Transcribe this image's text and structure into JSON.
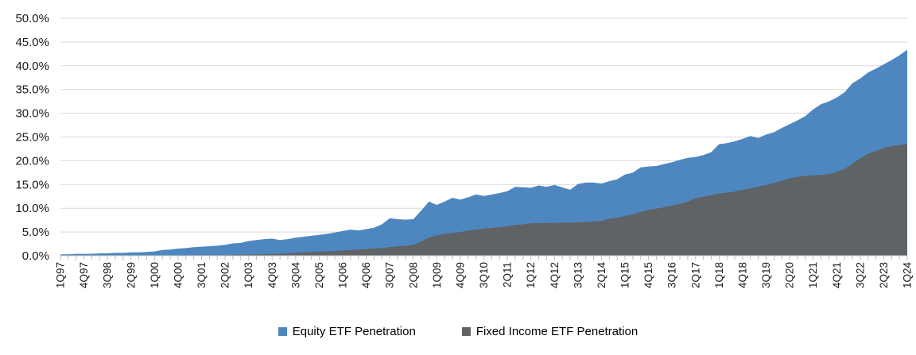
{
  "chart_data": {
    "type": "area",
    "title": "",
    "xlabel": "",
    "ylabel": "",
    "x_unit": "quarter",
    "x_tick_labels": [
      "1Q97",
      "4Q97",
      "3Q98",
      "2Q99",
      "1Q00",
      "4Q00",
      "3Q01",
      "2Q02",
      "1Q03",
      "4Q03",
      "3Q04",
      "2Q05",
      "1Q06",
      "4Q06",
      "3Q07",
      "2Q08",
      "1Q09",
      "4Q09",
      "3Q10",
      "2Q11",
      "1Q12",
      "4Q12",
      "3Q13",
      "2Q14",
      "1Q15",
      "4Q15",
      "3Q16",
      "2Q17",
      "1Q18",
      "4Q18",
      "3Q19",
      "2Q20",
      "1Q21",
      "4Q21",
      "3Q22",
      "2Q23",
      "1Q24"
    ],
    "x_label_every": 3,
    "y_axis": {
      "min": 0,
      "max": 50,
      "step": 5,
      "tick_labels": [
        "0.0%",
        "5.0%",
        "10.0%",
        "15.0%",
        "20.0%",
        "25.0%",
        "30.0%",
        "35.0%",
        "40.0%",
        "45.0%",
        "50.0%"
      ]
    },
    "grid": true,
    "legend_position": "bottom",
    "overlap": true,
    "series": [
      {
        "name": "Equity ETF Penetration",
        "color": "#4E87BF",
        "values": [
          0.3,
          0.3,
          0.4,
          0.4,
          0.4,
          0.5,
          0.5,
          0.6,
          0.6,
          0.7,
          0.7,
          0.8,
          0.9,
          1.2,
          1.3,
          1.5,
          1.6,
          1.8,
          1.9,
          2.0,
          2.1,
          2.3,
          2.6,
          2.7,
          3.1,
          3.3,
          3.5,
          3.6,
          3.3,
          3.5,
          3.8,
          4.0,
          4.2,
          4.4,
          4.6,
          4.9,
          5.2,
          5.5,
          5.3,
          5.6,
          5.9,
          6.6,
          7.9,
          7.7,
          7.6,
          7.7,
          9.5,
          11.4,
          10.7,
          11.4,
          12.2,
          11.8,
          12.3,
          12.9,
          12.6,
          12.9,
          13.2,
          13.6,
          14.5,
          14.4,
          14.3,
          14.8,
          14.5,
          14.9,
          14.4,
          13.9,
          15.1,
          15.4,
          15.4,
          15.2,
          15.7,
          16.1,
          17.1,
          17.5,
          18.6,
          18.8,
          18.9,
          19.3,
          19.7,
          20.2,
          20.6,
          20.8,
          21.2,
          21.8,
          23.5,
          23.7,
          24.1,
          24.6,
          25.2,
          24.8,
          25.5,
          26.0,
          26.9,
          27.7,
          28.5,
          29.4,
          30.8,
          31.9,
          32.5,
          33.3,
          34.4,
          36.3,
          37.3,
          38.6,
          39.4,
          40.3,
          41.2,
          42.2,
          43.4
        ]
      },
      {
        "name": "Fixed Income ETF Penetration",
        "color": "#5F6366",
        "values": [
          0.0,
          0.0,
          0.0,
          0.0,
          0.0,
          0.0,
          0.0,
          0.0,
          0.0,
          0.0,
          0.0,
          0.0,
          0.0,
          0.0,
          0.1,
          0.1,
          0.1,
          0.1,
          0.1,
          0.1,
          0.1,
          0.1,
          0.2,
          0.2,
          0.2,
          0.3,
          0.3,
          0.4,
          0.4,
          0.5,
          0.6,
          0.7,
          0.8,
          0.9,
          0.9,
          1.0,
          1.1,
          1.2,
          1.3,
          1.4,
          1.5,
          1.6,
          1.8,
          2.0,
          2.1,
          2.3,
          3.0,
          3.8,
          4.3,
          4.6,
          4.8,
          5.0,
          5.3,
          5.5,
          5.7,
          5.9,
          6.0,
          6.2,
          6.5,
          6.6,
          6.8,
          6.9,
          6.9,
          6.9,
          7.0,
          7.0,
          7.0,
          7.1,
          7.2,
          7.3,
          7.8,
          8.0,
          8.4,
          8.7,
          9.2,
          9.7,
          9.9,
          10.2,
          10.6,
          10.9,
          11.4,
          12.1,
          12.4,
          12.8,
          13.1,
          13.3,
          13.5,
          13.9,
          14.2,
          14.5,
          14.9,
          15.3,
          15.8,
          16.3,
          16.6,
          16.8,
          16.9,
          17.0,
          17.2,
          17.6,
          18.3,
          19.4,
          20.5,
          21.5,
          22.0,
          22.7,
          23.1,
          23.3,
          23.5
        ]
      }
    ],
    "colors": {
      "gridline": "#D9D9D9",
      "axis_line": "#C9C9C9",
      "tick": "#BFBFBF",
      "axis_text": "#1A1A1A"
    }
  }
}
